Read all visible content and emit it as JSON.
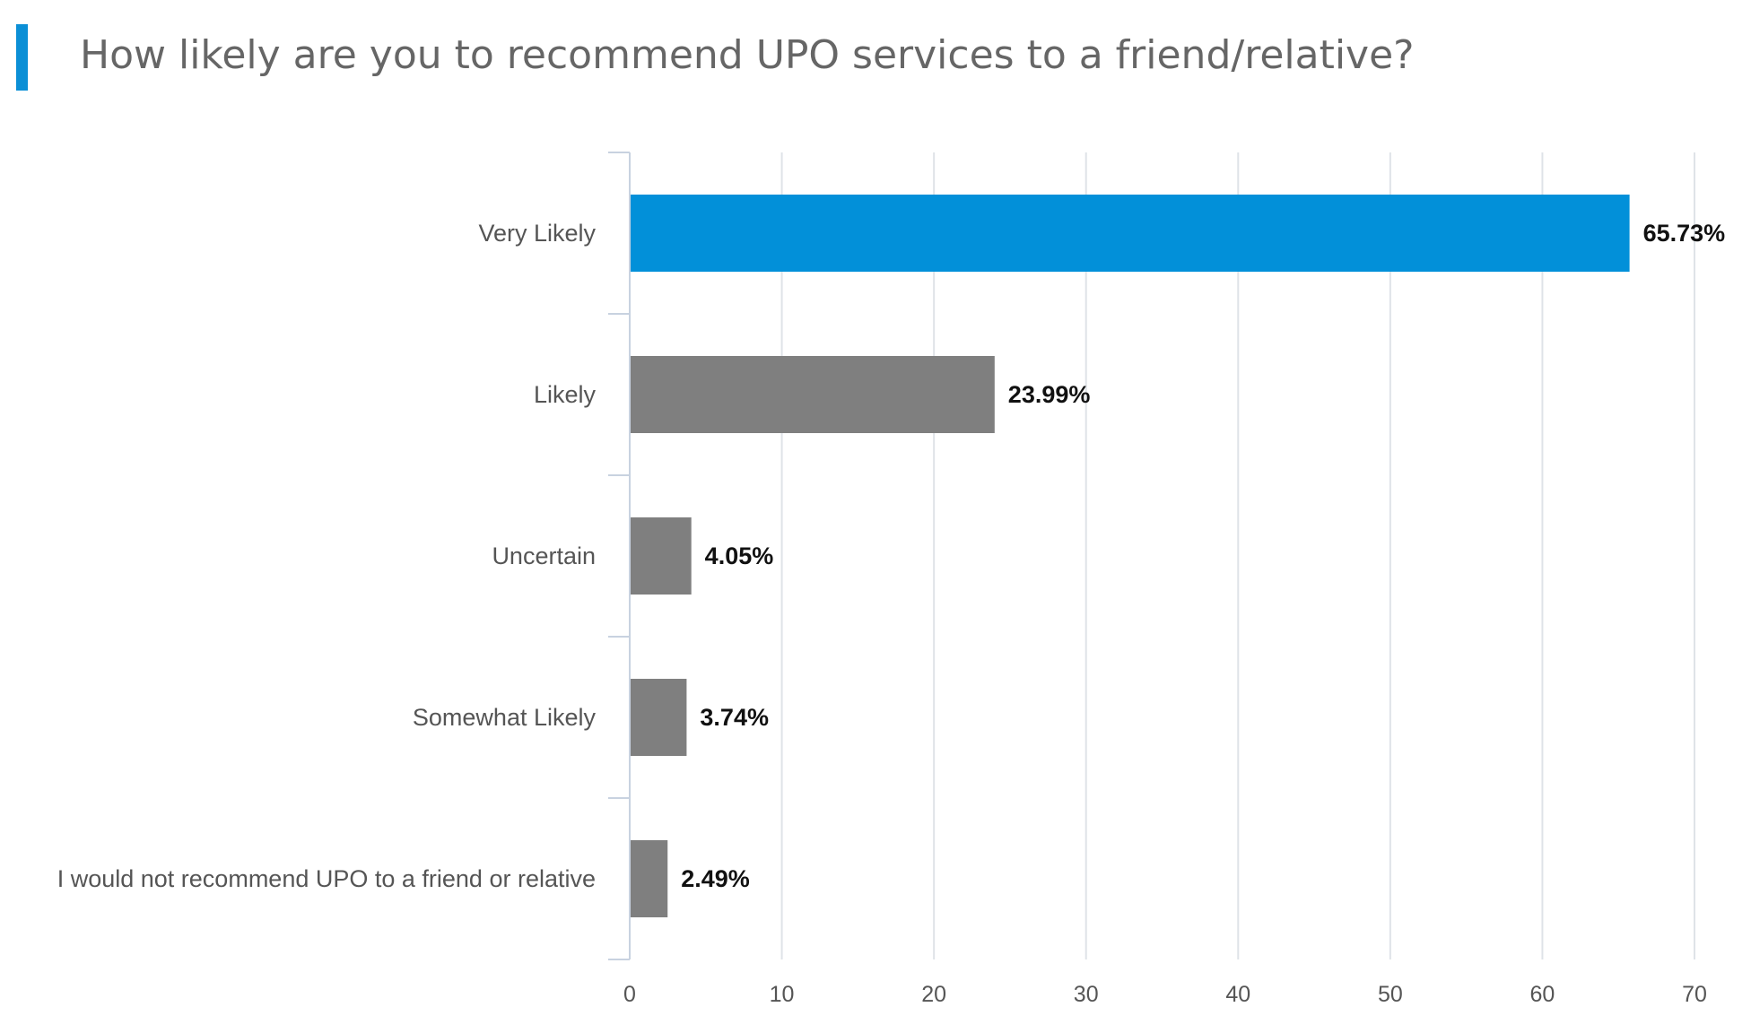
{
  "title": "How likely are you to recommend UPO services to a friend/relative?",
  "colors": {
    "accent": "#0b8fd6",
    "highlight_bar": "#0290d9",
    "bar": "#7f7f7f",
    "grid": "#dfe3e8",
    "axis": "#c8d2e0"
  },
  "chart_data": {
    "type": "bar",
    "orientation": "horizontal",
    "title": "How likely are you to recommend UPO services to a friend/relative?",
    "categories": [
      "Very Likely",
      "Likely",
      "Uncertain",
      "Somewhat Likely",
      "I would not recommend UPO to a friend or relative"
    ],
    "values": [
      65.73,
      23.99,
      4.05,
      3.74,
      2.49
    ],
    "value_labels": [
      "65.73%",
      "23.99%",
      "4.05%",
      "3.74%",
      "2.49%"
    ],
    "xlim": [
      0,
      70
    ],
    "xticks": [
      0,
      10,
      20,
      30,
      40,
      50,
      60,
      70
    ],
    "xlabel": "",
    "ylabel": "",
    "grid": true,
    "legend": "none"
  }
}
